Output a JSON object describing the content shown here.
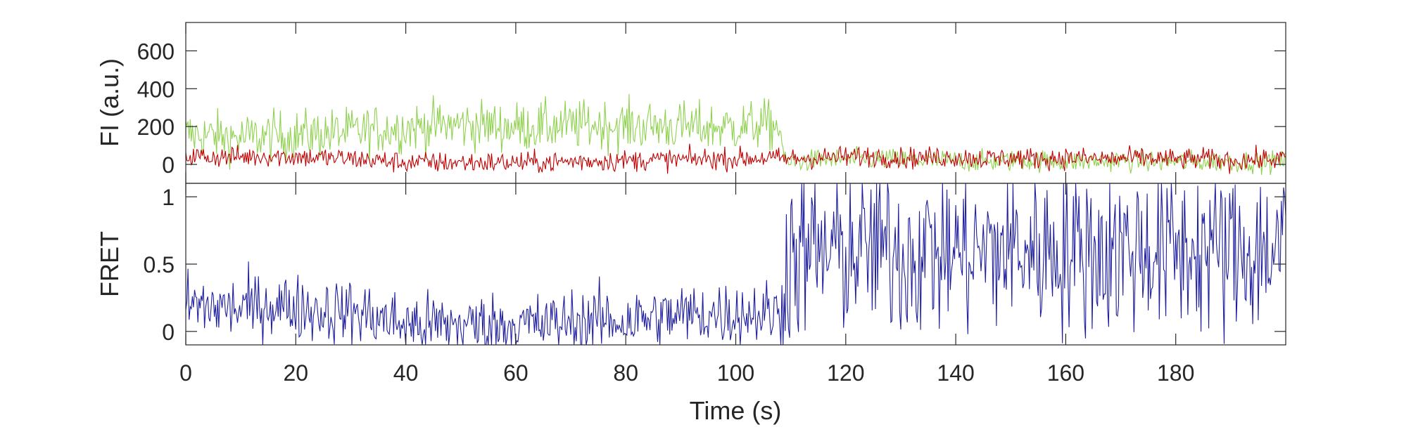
{
  "chart_data": [
    {
      "type": "line",
      "ylabel": "FI (a.u.)",
      "xlim": [
        0,
        200
      ],
      "ylim": [
        -100,
        750
      ],
      "yticks": [
        0,
        200,
        400,
        600
      ],
      "ytick_labels": [
        "0",
        "200",
        "400",
        "600"
      ],
      "grid": false,
      "series": [
        {
          "color": "#8fd14f",
          "x": [
            0,
            5,
            10,
            15,
            20,
            25,
            30,
            35,
            40,
            45,
            50,
            55,
            60,
            65,
            70,
            75,
            80,
            85,
            90,
            95,
            100,
            105,
            108,
            109,
            115,
            120,
            125,
            130,
            135,
            140,
            145,
            150,
            155,
            160,
            165,
            170,
            175,
            180,
            185,
            190,
            195,
            200
          ],
          "values": [
            160,
            150,
            140,
            150,
            155,
            165,
            170,
            185,
            195,
            205,
            210,
            205,
            200,
            200,
            205,
            210,
            205,
            205,
            200,
            195,
            200,
            210,
            200,
            5,
            25,
            25,
            30,
            25,
            20,
            20,
            15,
            20,
            20,
            15,
            15,
            20,
            15,
            15,
            15,
            15,
            15,
            15
          ]
        },
        {
          "color": "#c00000",
          "x": [
            0,
            5,
            10,
            15,
            20,
            25,
            30,
            35,
            40,
            45,
            50,
            55,
            60,
            65,
            70,
            75,
            80,
            85,
            90,
            95,
            100,
            105,
            108,
            109,
            115,
            120,
            125,
            130,
            135,
            140,
            145,
            150,
            155,
            160,
            165,
            170,
            175,
            180,
            185,
            190,
            195,
            200
          ],
          "values": [
            45,
            40,
            40,
            45,
            40,
            35,
            30,
            20,
            10,
            10,
            10,
            10,
            10,
            10,
            15,
            20,
            20,
            25,
            25,
            30,
            30,
            35,
            30,
            30,
            35,
            40,
            45,
            35,
            35,
            40,
            30,
            35,
            30,
            35,
            30,
            30,
            35,
            25,
            30,
            20,
            25,
            30
          ]
        }
      ]
    },
    {
      "type": "line",
      "ylabel": "FRET",
      "xlabel": "Time (s)",
      "xlim": [
        0,
        200
      ],
      "ylim": [
        -0.1,
        1.1
      ],
      "xticks": [
        0,
        20,
        40,
        60,
        80,
        100,
        120,
        140,
        160,
        180
      ],
      "xtick_labels": [
        "0",
        "20",
        "40",
        "60",
        "80",
        "100",
        "120",
        "140",
        "160",
        "180"
      ],
      "yticks": [
        0,
        0.5,
        1
      ],
      "ytick_labels": [
        "0",
        "0.5",
        "1"
      ],
      "grid": false,
      "series": [
        {
          "color": "#1f1f9e",
          "x": [
            0,
            5,
            10,
            15,
            20,
            25,
            30,
            35,
            40,
            45,
            50,
            55,
            60,
            65,
            70,
            75,
            80,
            85,
            90,
            95,
            100,
            105,
            108,
            109,
            115,
            120,
            125,
            130,
            135,
            140,
            145,
            150,
            155,
            160,
            165,
            170,
            175,
            180,
            185,
            190,
            195,
            200
          ],
          "values": [
            0.2,
            0.18,
            0.17,
            0.2,
            0.18,
            0.15,
            0.15,
            0.1,
            0.05,
            0.05,
            0.05,
            0.05,
            0.05,
            0.05,
            0.07,
            0.08,
            0.08,
            0.1,
            0.12,
            0.13,
            0.13,
            0.14,
            0.13,
            0.55,
            0.58,
            0.6,
            0.62,
            0.58,
            0.6,
            0.6,
            0.58,
            0.62,
            0.6,
            0.62,
            0.6,
            0.6,
            0.62,
            0.6,
            0.62,
            0.58,
            0.6,
            0.62
          ]
        }
      ]
    }
  ]
}
